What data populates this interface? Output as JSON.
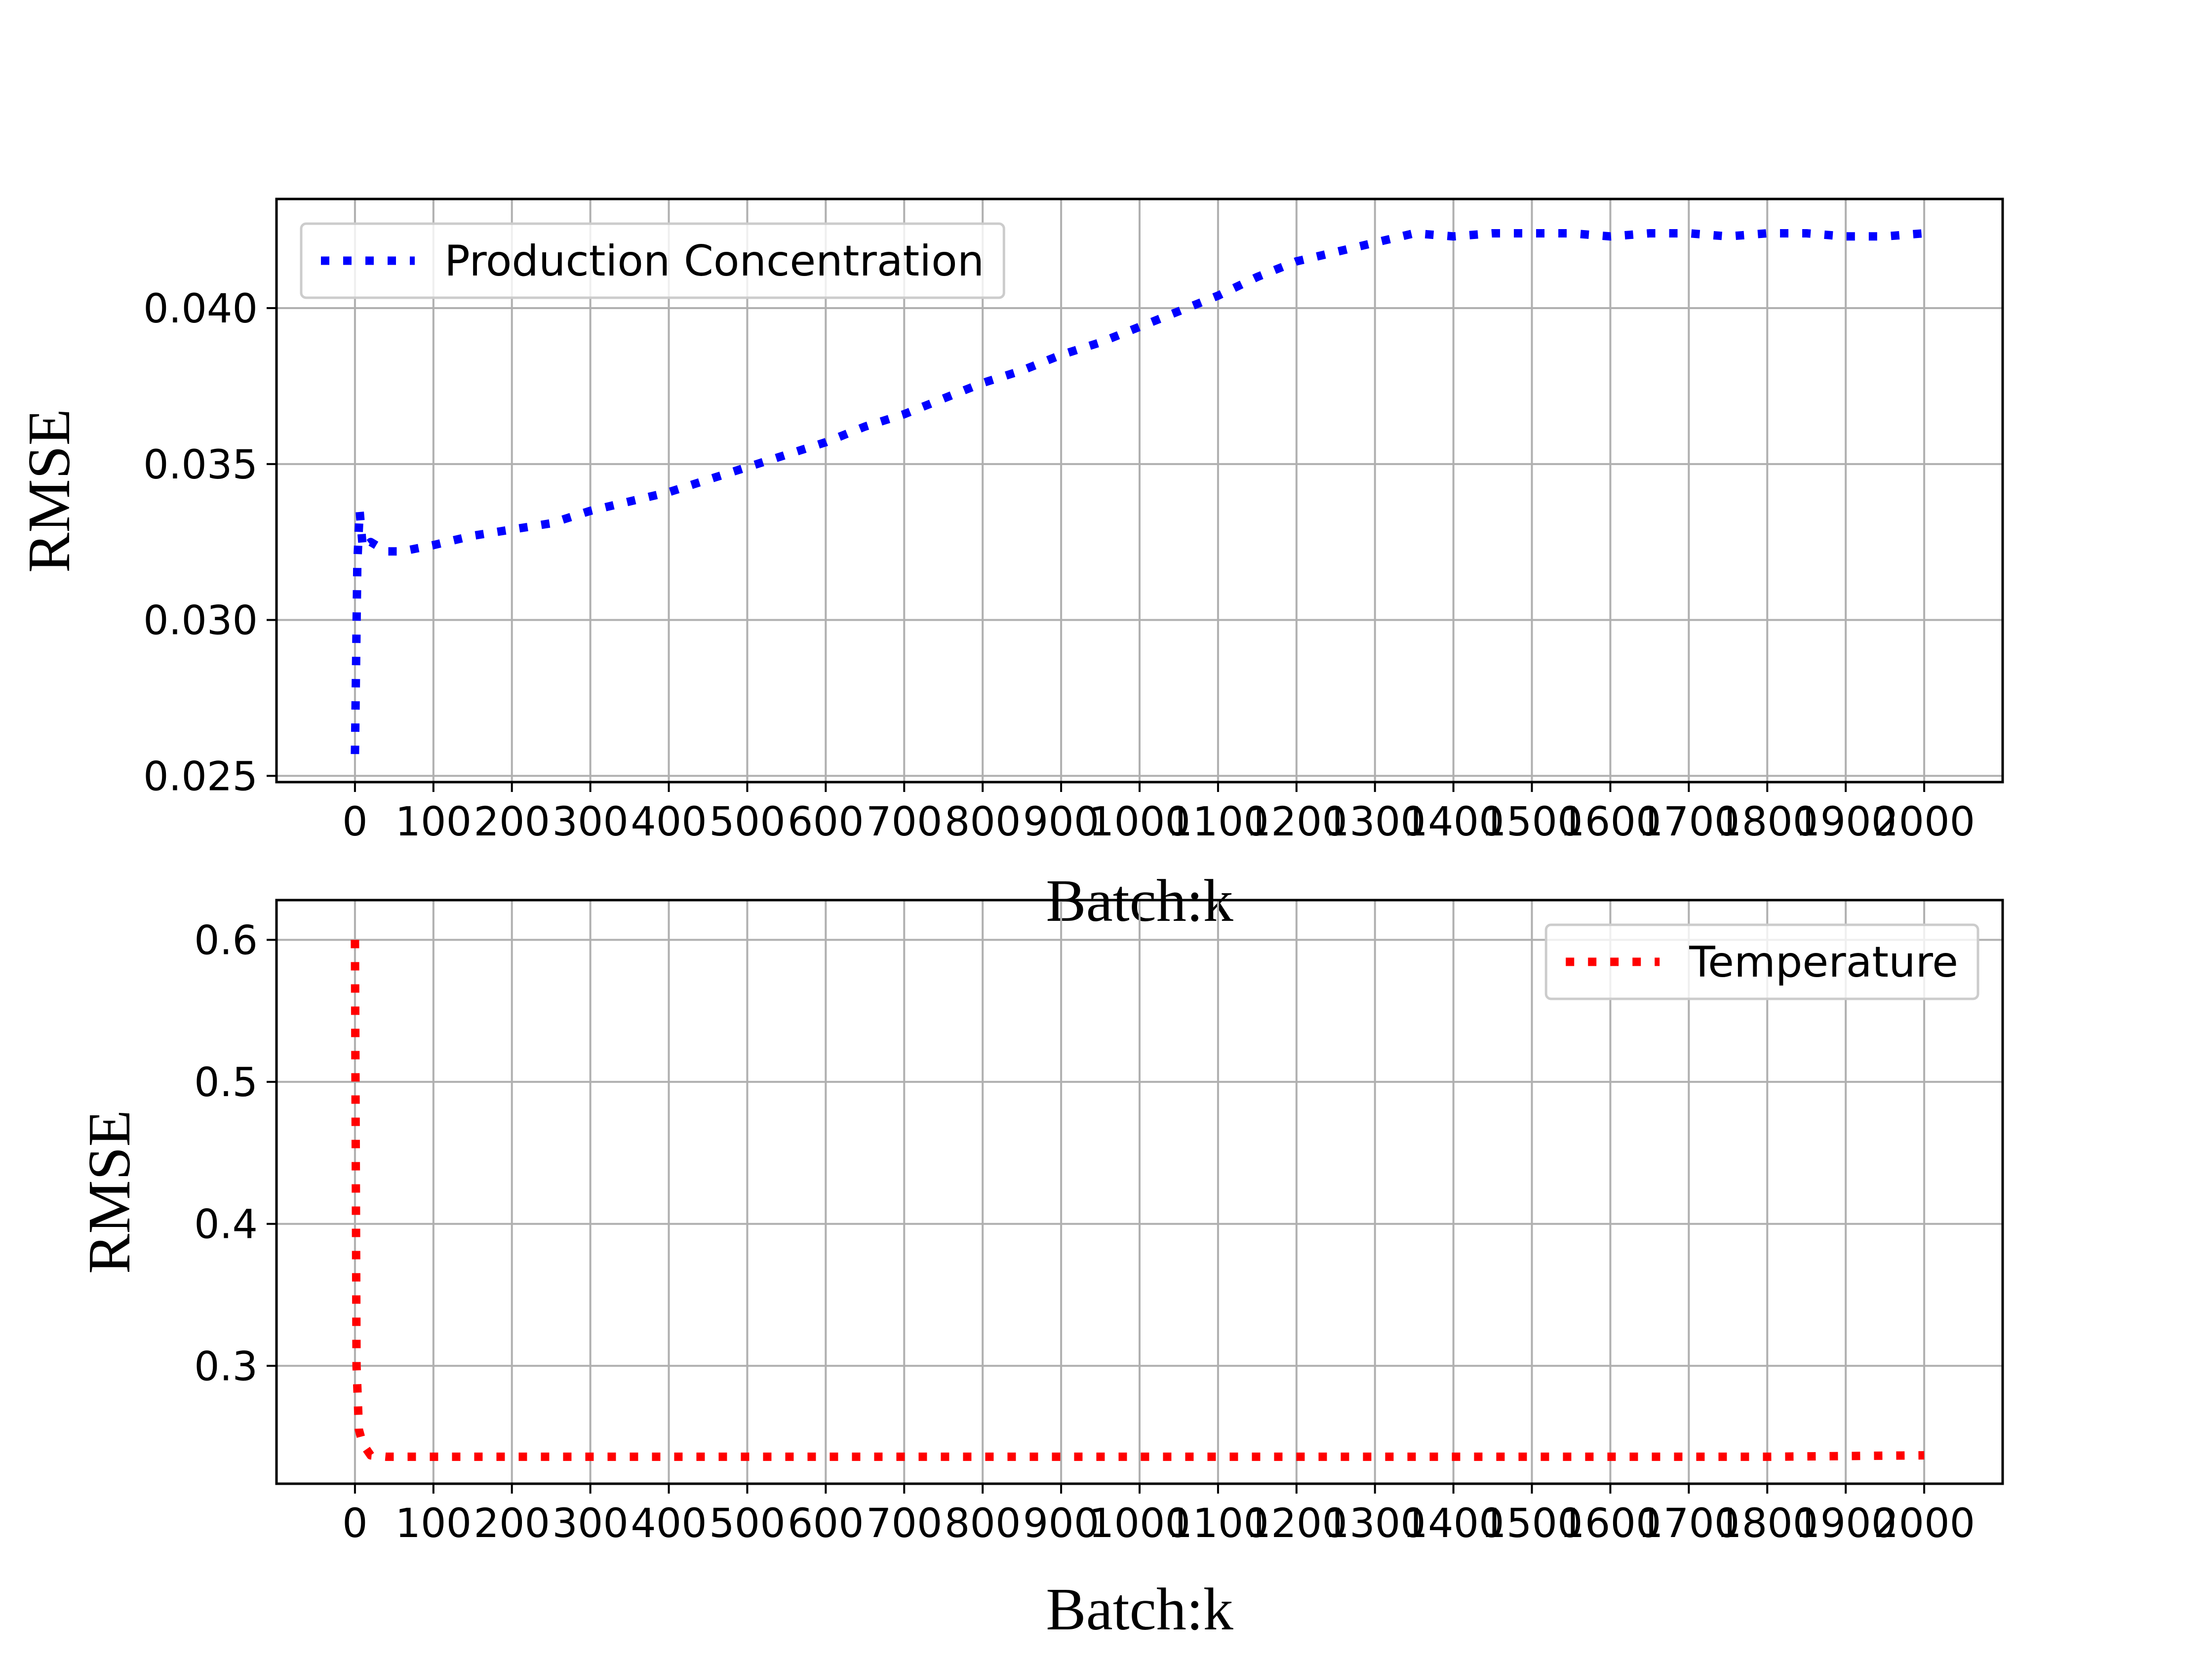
{
  "chart_data": [
    {
      "type": "line",
      "title": "",
      "xlabel": "Batch:k",
      "ylabel": "RMSE",
      "xlim": [
        -100,
        2100
      ],
      "ylim": [
        0.0248,
        0.0435
      ],
      "xticks": [
        0,
        100,
        200,
        300,
        400,
        500,
        600,
        700,
        800,
        900,
        1000,
        1100,
        1200,
        1300,
        1400,
        1500,
        1600,
        1700,
        1800,
        1900,
        2000
      ],
      "xtick_labels": [
        "0",
        "100",
        "200",
        "300",
        "400",
        "500",
        "600",
        "700",
        "800",
        "900",
        "1000",
        "1100",
        "1200",
        "1300",
        "1400",
        "1500",
        "1600",
        "1700",
        "1800",
        "1900",
        "2000"
      ],
      "yticks": [
        0.025,
        0.03,
        0.035,
        0.04
      ],
      "ytick_labels": [
        "0.025",
        "0.030",
        "0.035",
        "0.040"
      ],
      "grid": true,
      "legend_position": "upper-left",
      "series": [
        {
          "name": "Production Concentration",
          "color": "#0000ff",
          "line_style": "dotted",
          "x": [
            0,
            3,
            6,
            10,
            20,
            40,
            60,
            80,
            100,
            150,
            200,
            250,
            300,
            350,
            400,
            450,
            500,
            550,
            600,
            650,
            700,
            750,
            800,
            850,
            900,
            950,
            1000,
            1050,
            1100,
            1150,
            1200,
            1250,
            1300,
            1350,
            1400,
            1450,
            1500,
            1550,
            1600,
            1650,
            1700,
            1750,
            1800,
            1850,
            1900,
            1950,
            2000
          ],
          "y": [
            0.0257,
            0.0318,
            0.0335,
            0.0323,
            0.0325,
            0.0322,
            0.0322,
            0.0323,
            0.0324,
            0.0327,
            0.0329,
            0.0331,
            0.0335,
            0.0338,
            0.0341,
            0.0345,
            0.0349,
            0.0353,
            0.0357,
            0.0362,
            0.0366,
            0.0371,
            0.0376,
            0.038,
            0.0385,
            0.0389,
            0.0394,
            0.0399,
            0.0404,
            0.041,
            0.0415,
            0.0418,
            0.0421,
            0.0424,
            0.0423,
            0.0424,
            0.0424,
            0.0424,
            0.0423,
            0.0424,
            0.0424,
            0.0423,
            0.0424,
            0.0424,
            0.0423,
            0.0423,
            0.0424
          ]
        }
      ]
    },
    {
      "type": "line",
      "title": "",
      "xlabel": "Batch:k",
      "ylabel": "RMSE",
      "xlim": [
        -100,
        2100
      ],
      "ylim": [
        0.217,
        0.628
      ],
      "xticks": [
        0,
        100,
        200,
        300,
        400,
        500,
        600,
        700,
        800,
        900,
        1000,
        1100,
        1200,
        1300,
        1400,
        1500,
        1600,
        1700,
        1800,
        1900,
        2000
      ],
      "xtick_labels": [
        "0",
        "100",
        "200",
        "300",
        "400",
        "500",
        "600",
        "700",
        "800",
        "900",
        "1000",
        "1100",
        "1200",
        "1300",
        "1400",
        "1500",
        "1600",
        "1700",
        "1800",
        "1900",
        "2000"
      ],
      "yticks": [
        0.3,
        0.4,
        0.5,
        0.6
      ],
      "ytick_labels": [
        "0.3",
        "0.4",
        "0.5",
        "0.6"
      ],
      "grid": true,
      "legend_position": "upper-right",
      "series": [
        {
          "name": "Temperature",
          "color": "#ff0000",
          "line_style": "dotted",
          "x": [
            0,
            2,
            5,
            10,
            20,
            40,
            100,
            200,
            400,
            600,
            800,
            1000,
            1200,
            1400,
            1600,
            1800,
            2000
          ],
          "y": [
            0.6,
            0.3,
            0.255,
            0.245,
            0.237,
            0.236,
            0.236,
            0.236,
            0.236,
            0.236,
            0.236,
            0.236,
            0.236,
            0.236,
            0.236,
            0.236,
            0.237
          ]
        }
      ]
    }
  ]
}
